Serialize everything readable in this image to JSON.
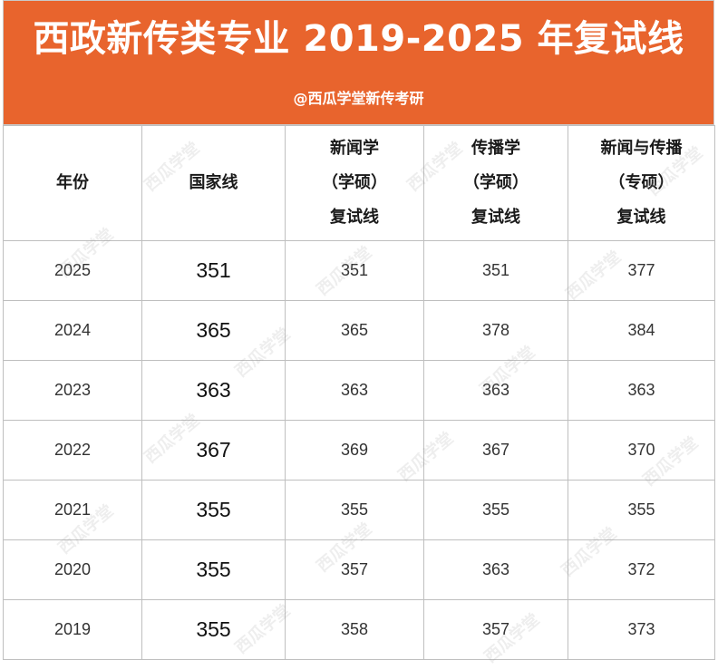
{
  "banner": {
    "title": "西政新传类专业 2019-2025 年复试线",
    "subtitle": "@西瓜学堂新传考研",
    "color": "#e8642d"
  },
  "watermark": "西瓜学堂",
  "table": {
    "headers": [
      [
        "年份"
      ],
      [
        "国家线"
      ],
      [
        "新闻学",
        "（学硕）",
        "复试线"
      ],
      [
        "传播学",
        "（学硕）",
        "复试线"
      ],
      [
        "新闻与传播",
        "（专硕）",
        "复试线"
      ]
    ],
    "rows": [
      [
        "2025",
        "351",
        "351",
        "351",
        "377"
      ],
      [
        "2024",
        "365",
        "365",
        "378",
        "384"
      ],
      [
        "2023",
        "363",
        "363",
        "363",
        "363"
      ],
      [
        "2022",
        "367",
        "369",
        "367",
        "370"
      ],
      [
        "2021",
        "355",
        "355",
        "355",
        "355"
      ],
      [
        "2020",
        "355",
        "357",
        "363",
        "372"
      ],
      [
        "2019",
        "355",
        "358",
        "357",
        "373"
      ]
    ]
  }
}
